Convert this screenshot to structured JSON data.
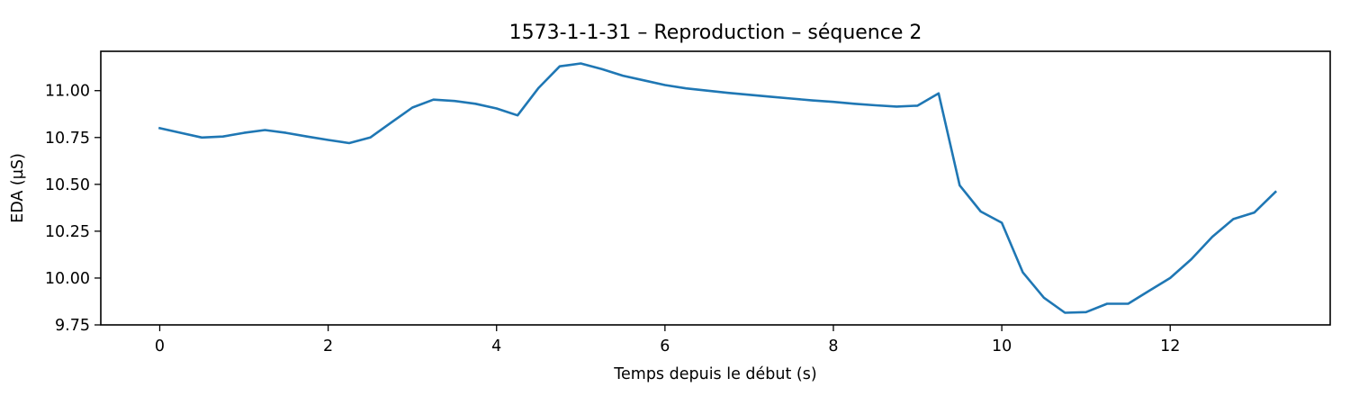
{
  "chart_data": {
    "type": "line",
    "title": "1573-1-1-31 – Reproduction – séquence 2",
    "xlabel": "Temps depuis le début (s)",
    "ylabel": "EDA (µS)",
    "xlim": [
      -0.7,
      13.9
    ],
    "ylim": [
      9.75,
      11.21
    ],
    "xticks": [
      0,
      2,
      4,
      6,
      8,
      10,
      12
    ],
    "yticks": [
      9.75,
      10.0,
      10.25,
      10.5,
      10.75,
      11.0
    ],
    "xtick_labels": [
      "0",
      "2",
      "4",
      "6",
      "8",
      "10",
      "12"
    ],
    "ytick_labels": [
      "9.75",
      "10.00",
      "10.25",
      "10.50",
      "10.75",
      "11.00"
    ],
    "grid": false,
    "series": [
      {
        "color": "#1f77b4",
        "x": [
          0,
          0.25,
          0.5,
          0.75,
          1.0,
          1.25,
          1.5,
          1.75,
          2.0,
          2.25,
          2.5,
          2.75,
          3.0,
          3.25,
          3.5,
          3.75,
          4.0,
          4.25,
          4.5,
          4.75,
          5.0,
          5.25,
          5.5,
          5.75,
          6.0,
          6.25,
          6.5,
          6.75,
          7.0,
          7.25,
          7.5,
          7.75,
          8.0,
          8.25,
          8.5,
          8.75,
          9.0,
          9.25,
          9.5,
          9.75,
          10.0,
          10.25,
          10.5,
          10.75,
          11.0,
          11.25,
          11.5,
          11.75,
          12.0,
          12.25,
          12.5,
          12.75,
          13.0,
          13.25
        ],
        "y": [
          10.8,
          10.775,
          10.75,
          10.755,
          10.775,
          10.79,
          10.775,
          10.755,
          10.737,
          10.72,
          10.75,
          10.83,
          10.91,
          10.952,
          10.945,
          10.93,
          10.905,
          10.868,
          11.015,
          11.13,
          11.145,
          11.115,
          11.08,
          11.055,
          11.03,
          11.012,
          11.0,
          10.988,
          10.978,
          10.968,
          10.958,
          10.948,
          10.94,
          10.93,
          10.922,
          10.915,
          10.92,
          10.985,
          10.495,
          10.355,
          10.295,
          10.03,
          9.895,
          9.815,
          9.818,
          9.863,
          9.863,
          9.932,
          10.0,
          10.1,
          10.22,
          10.315,
          10.35,
          10.46
        ]
      }
    ]
  }
}
